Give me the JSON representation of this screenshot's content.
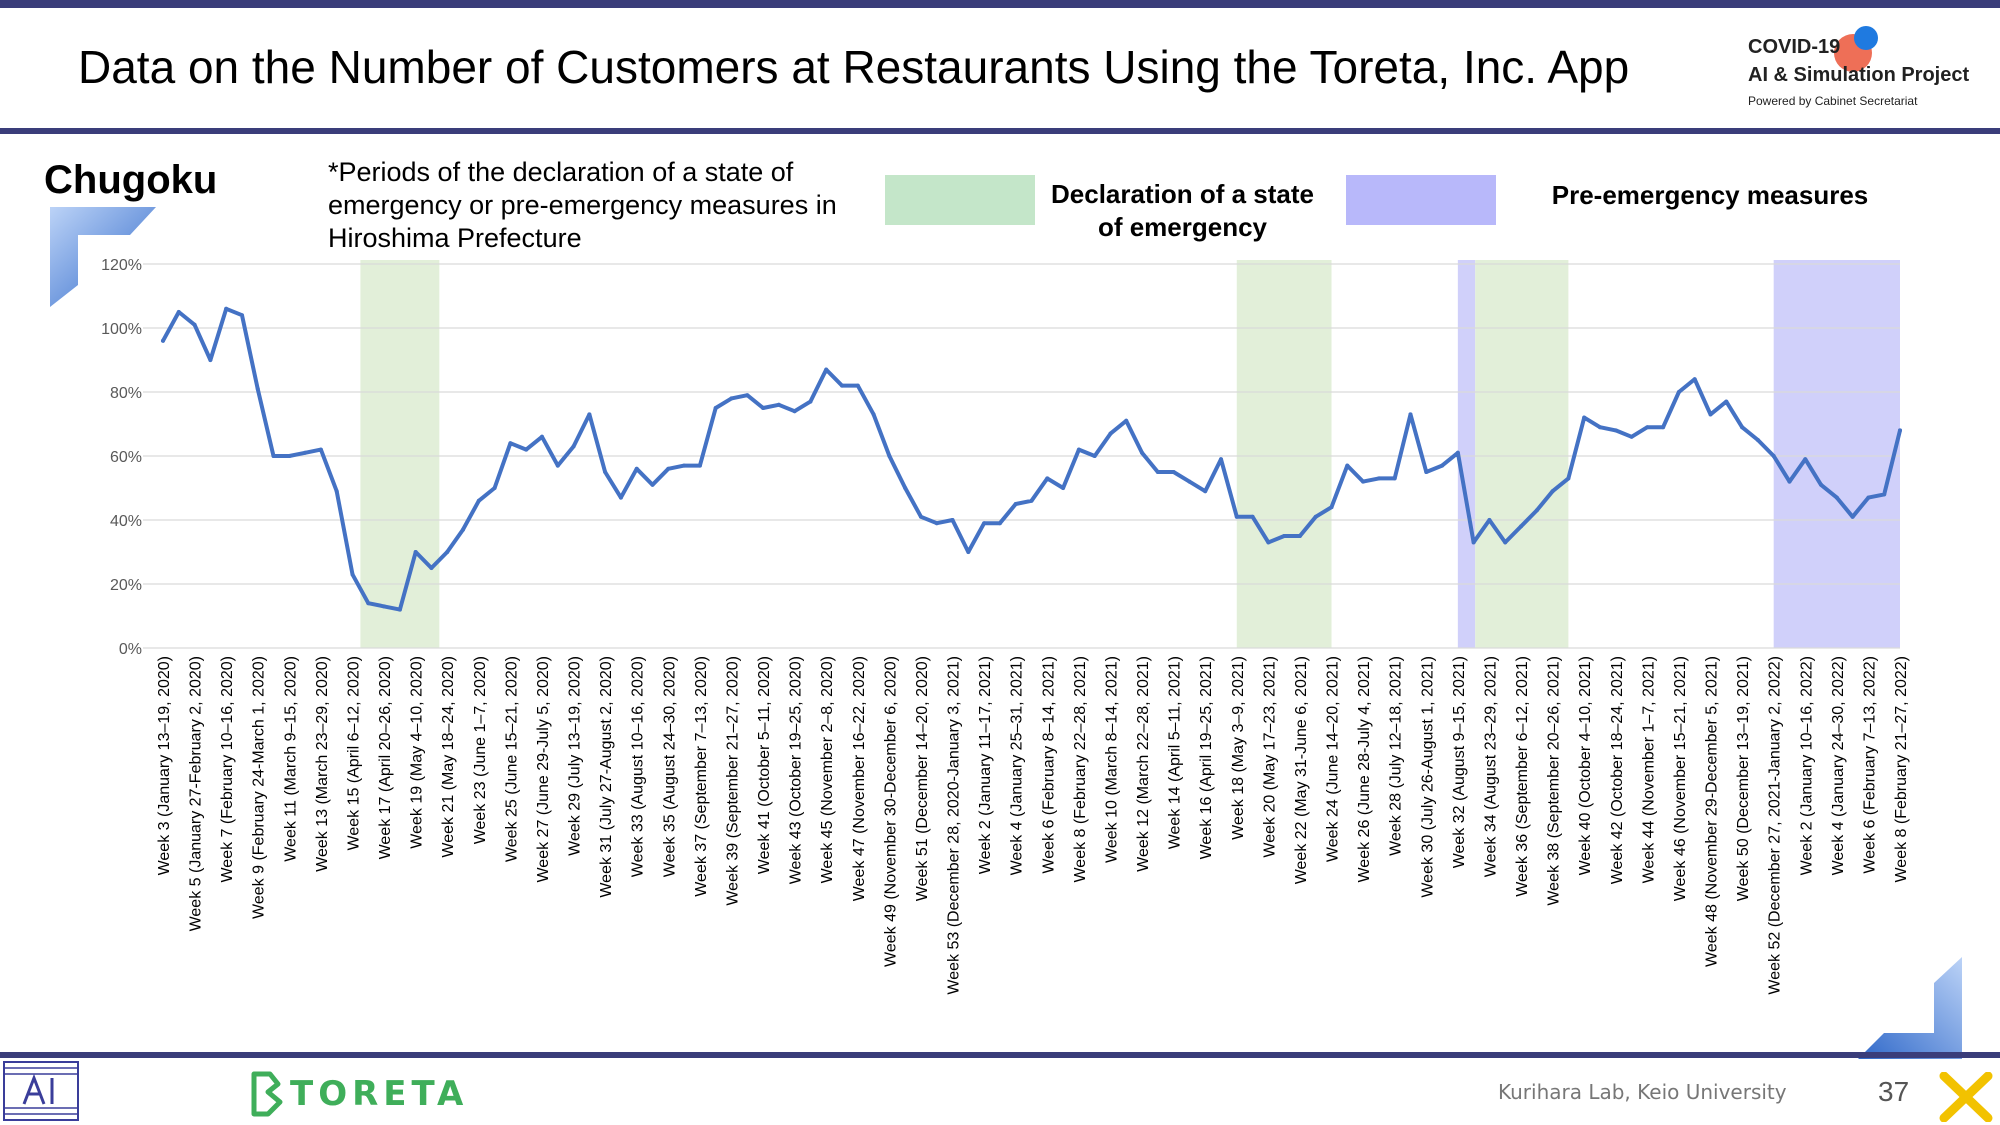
{
  "header": {
    "title": "Data on the Number of Customers at Restaurants Using the Toreta, Inc. App",
    "logo_line1": "COVID-19",
    "logo_line2": "AI & Simulation Project",
    "logo_line3": "Powered by Cabinet Secretariat"
  },
  "region": "Chugoku",
  "note": "*Periods of the declaration of a state of emergency or pre-emergency measures in Hiroshima Prefecture",
  "legend": {
    "emergency": "Declaration of a state of emergency",
    "pre_emergency": "Pre-emergency measures"
  },
  "footer": {
    "brand": "TORETA",
    "lab": "Kurihara Lab, Keio University",
    "page": "37"
  },
  "colors": {
    "line": "#4472c4",
    "emergency": "#e2efd9",
    "pre_emergency": "#d0d0fa",
    "accent_bar": "#3a3d7a"
  },
  "chart_data": {
    "type": "line",
    "title": "",
    "xlabel": "",
    "ylabel": "",
    "ylim": [
      0,
      120
    ],
    "y_unit": "%",
    "y_ticks": [
      "0%",
      "20%",
      "40%",
      "60%",
      "80%",
      "100%",
      "120%"
    ],
    "grid": true,
    "x_count": 111,
    "x_tick_labels": [
      "Week 3 (January 13–19, 2020)",
      "Week 5 (January 27-February 2, 2020)",
      "Week 7 (February 10–16, 2020)",
      "Week 9 (February 24-March 1, 2020)",
      "Week 11 (March 9–15, 2020)",
      "Week 13 (March 23–29, 2020)",
      "Week 15 (April 6–12, 2020)",
      "Week 17 (April 20–26, 2020)",
      "Week 19 (May 4–10, 2020)",
      "Week 21 (May 18–24, 2020)",
      "Week 23 (June 1–7, 2020)",
      "Week 25 (June 15–21, 2020)",
      "Week 27 (June 29-July 5, 2020)",
      "Week 29 (July 13–19, 2020)",
      "Week 31 (July 27-August 2, 2020)",
      "Week 33 (August 10–16, 2020)",
      "Week 35 (August 24–30, 2020)",
      "Week 37 (September 7–13, 2020)",
      "Week 39 (September 21–27, 2020)",
      "Week 41 (October 5–11, 2020)",
      "Week 43 (October 19–25, 2020)",
      "Week 45 (November 2–8, 2020)",
      "Week 47 (November 16–22, 2020)",
      "Week 49 (November 30-December 6, 2020)",
      "Week 51 (December 14–20, 2020)",
      "Week 53 (December 28, 2020-January 3, 2021)",
      "Week 2 (January 11–17, 2021)",
      "Week 4 (January 25–31, 2021)",
      "Week 6 (February 8–14, 2021)",
      "Week 8 (February 22–28, 2021)",
      "Week 10 (March 8–14, 2021)",
      "Week 12 (March 22–28, 2021)",
      "Week 14 (April 5–11, 2021)",
      "Week 16 (April 19–25, 2021)",
      "Week 18 (May 3–9, 2021)",
      "Week 20 (May 17–23, 2021)",
      "Week 22 (May 31-June 6, 2021)",
      "Week 24 (June 14–20, 2021)",
      "Week 26 (June 28-July 4, 2021)",
      "Week 28 (July 12–18, 2021)",
      "Week 30 (July 26-August 1, 2021)",
      "Week 32 (August 9–15, 2021)",
      "Week 34 (August 23–29, 2021)",
      "Week 36 (September 6–12, 2021)",
      "Week 38 (September 20–26, 2021)",
      "Week 40 (October 4–10, 2021)",
      "Week 42 (October 18–24, 2021)",
      "Week 44 (November 1–7, 2021)",
      "Week 46 (November 15–21, 2021)",
      "Week 48 (November 29-December 5, 2021)",
      "Week 50 (December 13–19, 2021)",
      "Week 52 (December 27, 2021-January 2, 2022)",
      "Week 2 (January 10–16, 2022)",
      "Week 4 (January 24–30, 2022)",
      "Week 6 (February 7–13, 2022)",
      "Week 8 (February 21–27, 2022)"
    ],
    "x_tick_positions": [
      0,
      2,
      4,
      6,
      8,
      10,
      12,
      14,
      16,
      18,
      20,
      22,
      24,
      26,
      28,
      30,
      32,
      34,
      36,
      38,
      40,
      42,
      44,
      46,
      48,
      50,
      52,
      54,
      56,
      58,
      60,
      62,
      64,
      66,
      68,
      70,
      72,
      74,
      76,
      78,
      80,
      82,
      84,
      86,
      88,
      90,
      92,
      94,
      96,
      98,
      100,
      102,
      104,
      106,
      108,
      110
    ],
    "shaded_periods": [
      {
        "type": "emergency",
        "start": 12.5,
        "end": 17.5
      },
      {
        "type": "emergency",
        "start": 68.0,
        "end": 74.0
      },
      {
        "type": "pre_emergency",
        "start": 82.0,
        "end": 83.1
      },
      {
        "type": "emergency",
        "start": 83.1,
        "end": 89.0
      },
      {
        "type": "pre_emergency",
        "start": 102.0,
        "end": 110.0
      }
    ],
    "series": [
      {
        "values": [
          96,
          105,
          101,
          90,
          106,
          104,
          81,
          60,
          60,
          61,
          62,
          49,
          23,
          14,
          13,
          12,
          30,
          25,
          30,
          37,
          46,
          50,
          64,
          62,
          66,
          57,
          63,
          73,
          55,
          47,
          56,
          51,
          56,
          57,
          57,
          75,
          78,
          79,
          75,
          76,
          74,
          77,
          87,
          82,
          82,
          73,
          60,
          50,
          41,
          39,
          40,
          30,
          39,
          39,
          45,
          46,
          53,
          50,
          62,
          60,
          67,
          71,
          61,
          55,
          55,
          52,
          49,
          59,
          41,
          41,
          33,
          35,
          35,
          41,
          44,
          57,
          52,
          53,
          53,
          73,
          55,
          57,
          61,
          33,
          40,
          33,
          38,
          43,
          49,
          53,
          72,
          69,
          68,
          66,
          69,
          69,
          80,
          84,
          73,
          77,
          69,
          65,
          60,
          52,
          59,
          51,
          47,
          41,
          47,
          48,
          68
        ]
      }
    ]
  }
}
